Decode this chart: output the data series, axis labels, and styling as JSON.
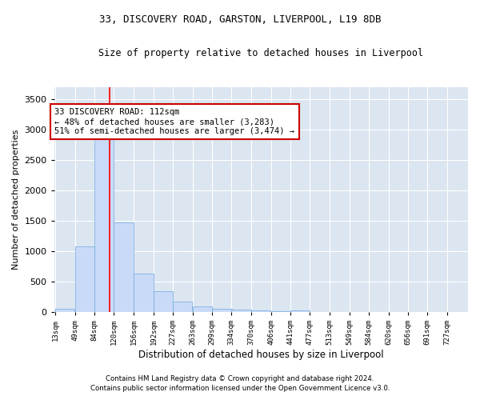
{
  "title": "33, DISCOVERY ROAD, GARSTON, LIVERPOOL, L19 8DB",
  "subtitle": "Size of property relative to detached houses in Liverpool",
  "xlabel": "Distribution of detached houses by size in Liverpool",
  "ylabel": "Number of detached properties",
  "bar_color": "#c9daf8",
  "bar_edge_color": "#6fa8dc",
  "background_color": "#dce6f1",
  "fig_background_color": "#ffffff",
  "grid_color": "#ffffff",
  "bin_edges": [
    13,
    49,
    84,
    120,
    156,
    192,
    227,
    263,
    299,
    334,
    370,
    406,
    441,
    477,
    513,
    549,
    584,
    620,
    656,
    691,
    727
  ],
  "bin_labels": [
    "13sqm",
    "49sqm",
    "84sqm",
    "120sqm",
    "156sqm",
    "192sqm",
    "227sqm",
    "263sqm",
    "299sqm",
    "334sqm",
    "370sqm",
    "406sqm",
    "441sqm",
    "477sqm",
    "513sqm",
    "549sqm",
    "584sqm",
    "620sqm",
    "656sqm",
    "691sqm",
    "727sqm"
  ],
  "bar_heights": [
    50,
    1080,
    2880,
    1480,
    630,
    340,
    170,
    90,
    60,
    40,
    30,
    20,
    25,
    5,
    0,
    0,
    0,
    0,
    0,
    0
  ],
  "red_line_x": 112,
  "ylim": [
    0,
    3700
  ],
  "yticks": [
    0,
    500,
    1000,
    1500,
    2000,
    2500,
    3000,
    3500
  ],
  "annotation_text": "33 DISCOVERY ROAD: 112sqm\n← 48% of detached houses are smaller (3,283)\n51% of semi-detached houses are larger (3,474) →",
  "annotation_box_color": "#ffffff",
  "annotation_box_edge_color": "#cc0000",
  "footer_line1": "Contains HM Land Registry data © Crown copyright and database right 2024.",
  "footer_line2": "Contains public sector information licensed under the Open Government Licence v3.0."
}
